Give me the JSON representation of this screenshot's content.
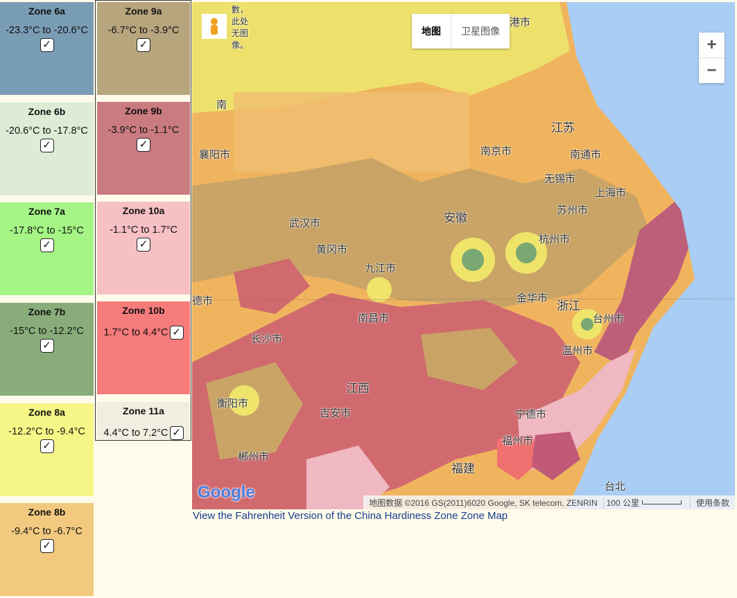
{
  "zones": [
    {
      "name": "Zone 6a",
      "range": "-23.3°C to -20.6°C",
      "color": "#7a9db6",
      "checked": true
    },
    {
      "name": "Zone 6b",
      "range": "-20.6°C to -17.8°C",
      "color": "#dcecd6",
      "checked": true
    },
    {
      "name": "Zone 7a",
      "range": "-17.8°C to -15°C",
      "color": "#a4f585",
      "checked": true
    },
    {
      "name": "Zone 7b",
      "range": "-15°C to -12.2°C",
      "color": "#88ad7a",
      "checked": true
    },
    {
      "name": "Zone 8a",
      "range": "-12.2°C to -9.4°C",
      "color": "#f6f687",
      "checked": true
    },
    {
      "name": "Zone 8b",
      "range": "-9.4°C to -6.7°C",
      "color": "#f2c97f",
      "checked": true
    },
    {
      "name": "Zone 9a",
      "range": "-6.7°C to -3.9°C",
      "color": "#b7a57d",
      "checked": true
    },
    {
      "name": "Zone 9b",
      "range": "-3.9°C to -1.1°C",
      "color": "#c97b80",
      "checked": true
    },
    {
      "name": "Zone 10a",
      "range": "-1.1°C to 1.7°C",
      "color": "#f6c0c5",
      "checked": true
    },
    {
      "name": "Zone 10b",
      "range": "1.7°C to 4.4°C",
      "color": "#f67b7b",
      "checked": true
    },
    {
      "name": "Zone 11a",
      "range": "4.4°C to 7.2°C",
      "color": "#f1eee1",
      "checked": true
    }
  ],
  "map": {
    "no_image_note": [
      "數，",
      "此处",
      "无图",
      "像。"
    ],
    "labels": [
      "港市",
      "南",
      "江苏",
      "南京市",
      "南通市",
      "襄阳市",
      "无锡市",
      "上海市",
      "苏州市",
      "武汉市",
      "安徽",
      "杭州市",
      "黄冈市",
      "九江市",
      "金华市",
      "浙江",
      "德市",
      "台州市",
      "南昌市",
      "长沙市",
      "温州市",
      "江西",
      "衡阳市",
      "吉安市",
      "宁德市",
      "福州市",
      "郴州市",
      "福建",
      "台北"
    ],
    "map_type_buttons": [
      "地图",
      "卫星图像"
    ],
    "zoom_in": "+",
    "zoom_out": "−",
    "logo": "Google",
    "attribution": "地图数据 ©2016 GS(2011)6020 Google, SK telecom, ZENRIN",
    "scale": "100 公里",
    "terms": "使用条款"
  },
  "link": "View the Fahrenheit Version of the China Hardiness Zone Zone Map"
}
